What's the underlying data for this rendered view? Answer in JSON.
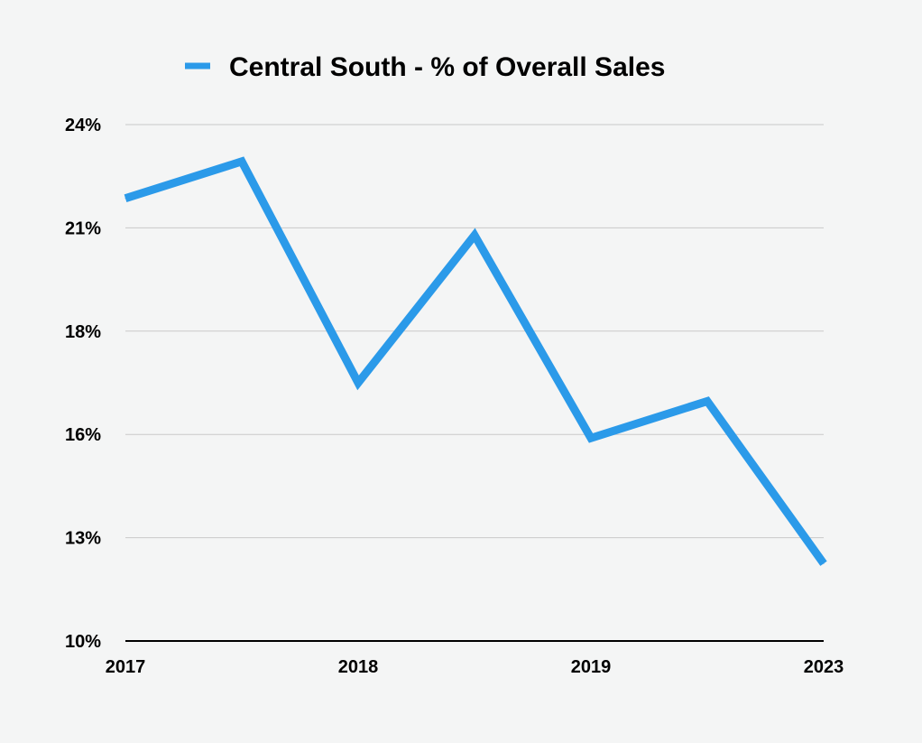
{
  "chart_data": {
    "type": "line",
    "title": "",
    "xlabel": "",
    "ylabel": "",
    "x_tick_labels": [
      "2017",
      "2018",
      "2019",
      "2023"
    ],
    "y_tick_labels": [
      "10%",
      "13%",
      "16%",
      "18%",
      "21%",
      "24%"
    ],
    "ylim": [
      10,
      24
    ],
    "grid": true,
    "legend_position": "top",
    "series": [
      {
        "name": "Central South - % of Overall Sales",
        "color": "#2b9ae9",
        "values": [
          22.0,
          23.0,
          17.0,
          21.0,
          15.5,
          16.5,
          12.1
        ]
      }
    ]
  }
}
